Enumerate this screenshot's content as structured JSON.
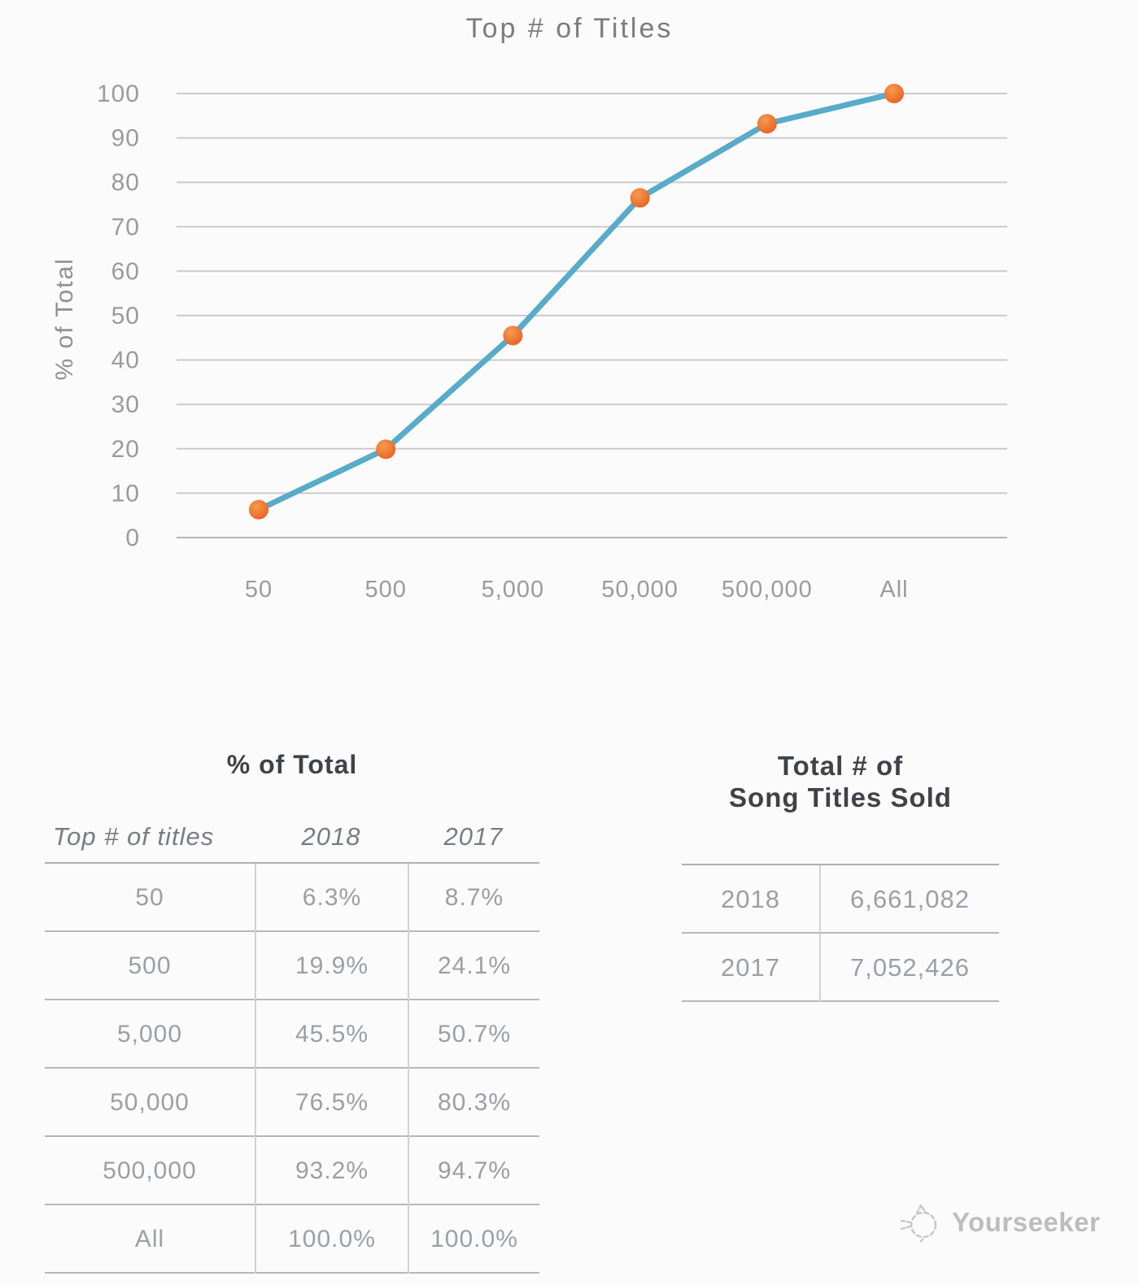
{
  "page": {
    "background": "#fbfbfb"
  },
  "chart_data": {
    "type": "line",
    "title": "Top # of Titles",
    "ylabel": "% of Total",
    "categories": [
      "50",
      "500",
      "5,000",
      "50,000",
      "500,000",
      "All"
    ],
    "series": [
      {
        "name": "2018",
        "values": [
          6.3,
          19.9,
          45.5,
          76.5,
          93.2,
          100.0
        ]
      }
    ],
    "ylim": [
      0,
      100
    ],
    "ytick_step": 10,
    "grid": "horizontal",
    "legend": "none",
    "line_color": "#58abc9",
    "marker_color_outer": "#e45a1f",
    "marker_color_inner": "#f89a4d",
    "gridline_color": "#cbcbcb",
    "axis_text_color": "#9b9b9b"
  },
  "percent_table": {
    "title": "% of Total",
    "columns": [
      "Top # of titles",
      "2018",
      "2017"
    ],
    "rows": [
      [
        "50",
        "6.3%",
        "8.7%"
      ],
      [
        "500",
        "19.9%",
        "24.1%"
      ],
      [
        "5,000",
        "45.5%",
        "50.7%"
      ],
      [
        "50,000",
        "76.5%",
        "80.3%"
      ],
      [
        "500,000",
        "93.2%",
        "94.7%"
      ],
      [
        "All",
        "100.0%",
        "100.0%"
      ]
    ]
  },
  "totals_table": {
    "title_line1": "Total # of",
    "title_line2": "Song Titles Sold",
    "rows": [
      [
        "2018",
        "6,661,082"
      ],
      [
        "2017",
        "7,052,426"
      ]
    ]
  },
  "watermark": {
    "label": "Yourseeker"
  }
}
